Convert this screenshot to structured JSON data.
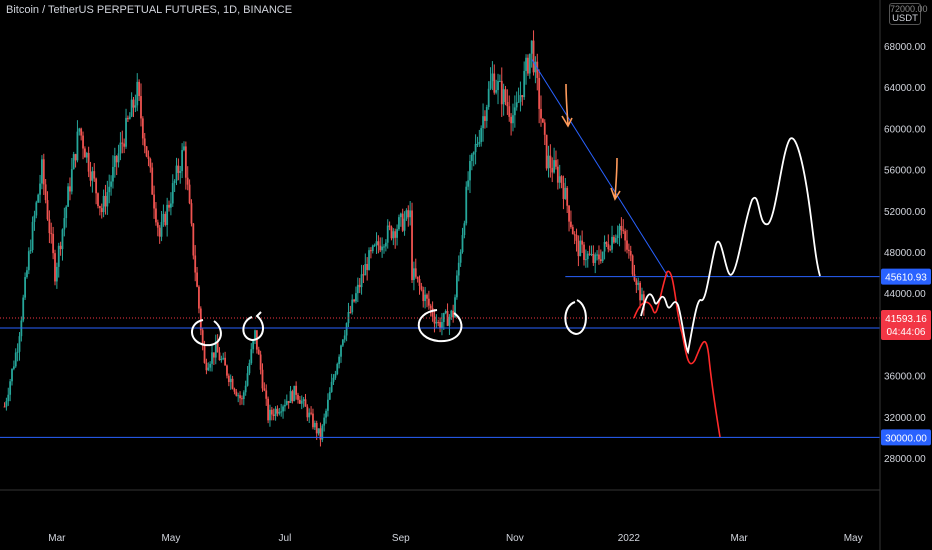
{
  "header": {
    "symbol_title": "Bitcoin / TetherUS PERPETUAL FUTURES, 1D, BINANCE",
    "currency_badge": "USDT",
    "top_cut_label": "72000.00"
  },
  "chart_data": {
    "type": "candlestick",
    "y_axis": {
      "range": [
        24500,
        71000
      ],
      "ticks": [
        28000,
        32000,
        36000,
        40000,
        44000,
        48000,
        52000,
        56000,
        60000,
        64000,
        68000
      ],
      "tick_labels": [
        "28000.00",
        "32000.00",
        "36000.00",
        "40000.00",
        "44000.00",
        "48000.00",
        "52000.00",
        "56000.00",
        "60000.00",
        "64000.00",
        "68000.00"
      ]
    },
    "x_axis": {
      "ticks": [
        "Mar",
        "May",
        "Jul",
        "Sep",
        "Nov",
        "2022",
        "Mar",
        "May"
      ]
    },
    "candles_anchor_path": [
      [
        "2021-02-01",
        33000
      ],
      [
        "2021-02-08",
        39000
      ],
      [
        "2021-02-15",
        49000
      ],
      [
        "2021-02-21",
        56000
      ],
      [
        "2021-02-28",
        46000
      ],
      [
        "2021-03-13",
        60000
      ],
      [
        "2021-03-25",
        52000
      ],
      [
        "2021-04-13",
        63500
      ],
      [
        "2021-04-25",
        49500
      ],
      [
        "2021-05-08",
        58000
      ],
      [
        "2021-05-12",
        50000
      ],
      [
        "2021-05-19",
        37000
      ],
      [
        "2021-05-25",
        38500
      ],
      [
        "2021-06-08",
        33500
      ],
      [
        "2021-06-15",
        40000
      ],
      [
        "2021-06-22",
        32000
      ],
      [
        "2021-07-07",
        34500
      ],
      [
        "2021-07-20",
        30000
      ],
      [
        "2021-08-01",
        40000
      ],
      [
        "2021-08-14",
        47000
      ],
      [
        "2021-08-23",
        49500
      ],
      [
        "2021-09-06",
        51500
      ],
      [
        "2021-09-07",
        46000
      ],
      [
        "2021-09-21",
        41000
      ],
      [
        "2021-09-29",
        42000
      ],
      [
        "2021-10-07",
        55000
      ],
      [
        "2021-10-20",
        65000
      ],
      [
        "2021-11-01",
        61000
      ],
      [
        "2021-11-10",
        68000
      ],
      [
        "2021-11-18",
        57000
      ],
      [
        "2021-11-26",
        55000
      ],
      [
        "2021-12-04",
        48500
      ],
      [
        "2021-12-14",
        47000
      ],
      [
        "2021-12-27",
        50500
      ],
      [
        "2022-01-05",
        45500
      ],
      [
        "2022-01-10",
        41600
      ]
    ],
    "horizontal_levels": [
      {
        "value": 45610.93,
        "label": "45610.93",
        "color": "#2962ff"
      },
      {
        "value": 40620.72,
        "label": "40620.72",
        "color": "#2962ff"
      },
      {
        "value": 30000.0,
        "label": "30000.00",
        "color": "#2962ff"
      }
    ],
    "last_price": {
      "value": 41593.16,
      "label": "41593.16",
      "countdown": "04:44:06",
      "color": "#f23645"
    },
    "trendline": {
      "from": [
        "2021-11-10",
        66700
      ],
      "to": [
        "2022-01-22",
        45610.93
      ],
      "color": "#2962ff"
    },
    "annotations": {
      "projection_white": "bullish scenario path drawn in white",
      "projection_red": "bearish scenario path drawn in red",
      "arrows": "orange hand-drawn arrows",
      "circles": "white hand-drawn circles at support touches"
    },
    "grid": false
  },
  "colors": {
    "up": "#26a69a",
    "down": "#ef5350",
    "background": "#000000",
    "axis_text": "#d1d4dc",
    "level_line": "#2962ff",
    "price_line": "#f23645"
  }
}
